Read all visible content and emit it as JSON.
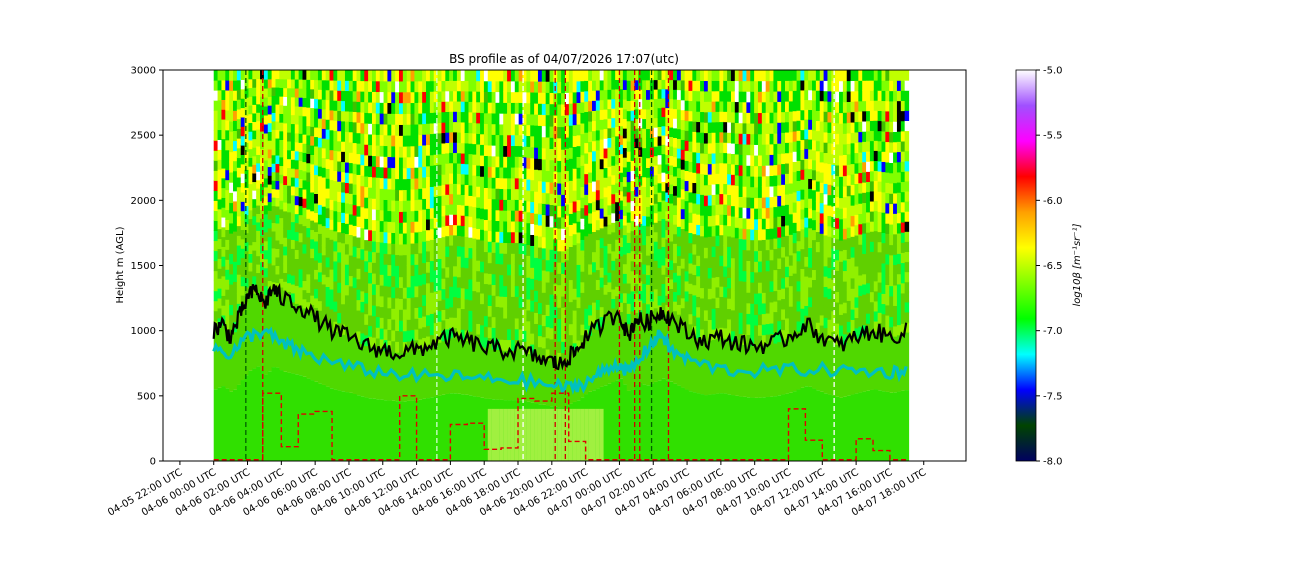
{
  "chart_data": {
    "type": "heatmap",
    "title": "BS profile as of 04/07/2026 17:07(utc)",
    "xlabel": "",
    "ylabel": "Height m (AGL)",
    "ylim": [
      0,
      3000
    ],
    "y_ticks": [
      0,
      500,
      1000,
      1500,
      2000,
      2500,
      3000
    ],
    "x_range": [
      "04-05 21:00",
      "04-07 20:30"
    ],
    "x_tick_labels": [
      "04-05 22:00 UTC",
      "04-06 00:00 UTC",
      "04-06 02:00 UTC",
      "04-06 04:00 UTC",
      "04-06 06:00 UTC",
      "04-06 08:00 UTC",
      "04-06 10:00 UTC",
      "04-06 12:00 UTC",
      "04-06 14:00 UTC",
      "04-06 16:00 UTC",
      "04-06 18:00 UTC",
      "04-06 20:00 UTC",
      "04-06 22:00 UTC",
      "04-07 00:00 UTC",
      "04-07 02:00 UTC",
      "04-07 04:00 UTC",
      "04-07 06:00 UTC",
      "04-07 08:00 UTC",
      "04-07 10:00 UTC",
      "04-07 12:00 UTC",
      "04-07 14:00 UTC",
      "04-07 16:00 UTC",
      "04-07 18:00 UTC"
    ],
    "x_tick_hours": [
      -2,
      0,
      2,
      4,
      6,
      8,
      10,
      12,
      14,
      16,
      18,
      20,
      22,
      24,
      26,
      28,
      30,
      32,
      34,
      36,
      38,
      40,
      42
    ],
    "data_coverage_hours": [
      0,
      41.1
    ],
    "colorbar": {
      "label": "log10β [m⁻¹sr⁻¹]",
      "range": [
        -8.0,
        -5.0
      ],
      "ticks": [
        -8.0,
        -7.5,
        -7.0,
        -6.5,
        -6.0,
        -5.5,
        -5.0
      ],
      "tick_labels": [
        "-8.0",
        "-7.5",
        "-7.0",
        "-6.5",
        "-6.0",
        "-5.5",
        "-5.0"
      ],
      "colors": [
        "#000060",
        "#004400",
        "#0000ff",
        "#00ffff",
        "#00ff00",
        "#80ff00",
        "#ffff00",
        "#ffa000",
        "#ff0000",
        "#ff00ff",
        "#a050ff",
        "#ffffff"
      ]
    },
    "series": [
      {
        "kind": "line",
        "color": "#000000",
        "x_hours": [
          0,
          0.5,
          1,
          1.5,
          2,
          2.5,
          3,
          3.5,
          4,
          5,
          6,
          7,
          8,
          9,
          10,
          11,
          12,
          13,
          14,
          15,
          16,
          17,
          18,
          19,
          20,
          20.5,
          21,
          21.5,
          22,
          23,
          24,
          24.5,
          25,
          25.5,
          26,
          26.5,
          27,
          28,
          29,
          30,
          31,
          32,
          33,
          34,
          35,
          36,
          37,
          38,
          39,
          40,
          41.1
        ],
        "y": [
          1000,
          1050,
          950,
          1100,
          1250,
          1320,
          1200,
          1330,
          1250,
          1200,
          1100,
          1000,
          950,
          880,
          850,
          830,
          850,
          900,
          950,
          920,
          870,
          850,
          850,
          800,
          760,
          740,
          800,
          850,
          950,
          1050,
          1150,
          950,
          1100,
          1050,
          1100,
          1150,
          1100,
          980,
          920,
          950,
          900,
          880,
          900,
          950,
          1050,
          950,
          880,
          950,
          1000,
          950,
          1000
        ]
      },
      {
        "kind": "line",
        "color": "#00c0c0",
        "x_hours": [
          0,
          1,
          2,
          3,
          4,
          5,
          6,
          8,
          10,
          12,
          14,
          16,
          18,
          20,
          21,
          22,
          23,
          24,
          24.5,
          25,
          26,
          26.5,
          27,
          28,
          30,
          32,
          34,
          36,
          38,
          40,
          41.1
        ],
        "y": [
          870,
          820,
          950,
          1000,
          900,
          850,
          800,
          720,
          680,
          650,
          650,
          630,
          620,
          580,
          560,
          600,
          680,
          750,
          680,
          750,
          920,
          980,
          850,
          780,
          700,
          690,
          700,
          700,
          690,
          680,
          700
        ]
      },
      {
        "kind": "step",
        "color": "#e00000",
        "dashed": true,
        "x_hours": [
          0,
          1.5,
          2.9,
          4,
          5,
          6,
          7,
          8,
          10,
          11,
          12,
          13,
          14,
          15,
          16,
          17,
          18,
          19,
          20,
          21,
          22,
          23,
          24,
          25,
          26,
          27,
          28,
          34,
          35,
          36,
          37,
          38,
          39,
          40,
          41.1
        ],
        "y": [
          10,
          10,
          520,
          110,
          360,
          380,
          10,
          10,
          10,
          500,
          10,
          10,
          280,
          290,
          90,
          100,
          480,
          460,
          520,
          150,
          10,
          10,
          10,
          10,
          10,
          10,
          10,
          400,
          160,
          10,
          10,
          170,
          80,
          10,
          10
        ]
      }
    ],
    "vertical_markers": [
      {
        "x_hours": 1.9,
        "color": "#006000"
      },
      {
        "x_hours": 2.9,
        "color": "#d00000"
      },
      {
        "x_hours": 13.2,
        "color": "#d0ffd0"
      },
      {
        "x_hours": 18.3,
        "color": "#ffffff"
      },
      {
        "x_hours": 20.8,
        "color": "#d00000"
      },
      {
        "x_hours": 20.2,
        "color": "#d00000"
      },
      {
        "x_hours": 24.0,
        "color": "#d00000"
      },
      {
        "x_hours": 24.9,
        "color": "#d00000"
      },
      {
        "x_hours": 25.2,
        "color": "#d00000"
      },
      {
        "x_hours": 25.9,
        "color": "#006000"
      },
      {
        "x_hours": 26.9,
        "color": "#d00000"
      },
      {
        "x_hours": 36.7,
        "color": "#ffffff"
      }
    ]
  }
}
